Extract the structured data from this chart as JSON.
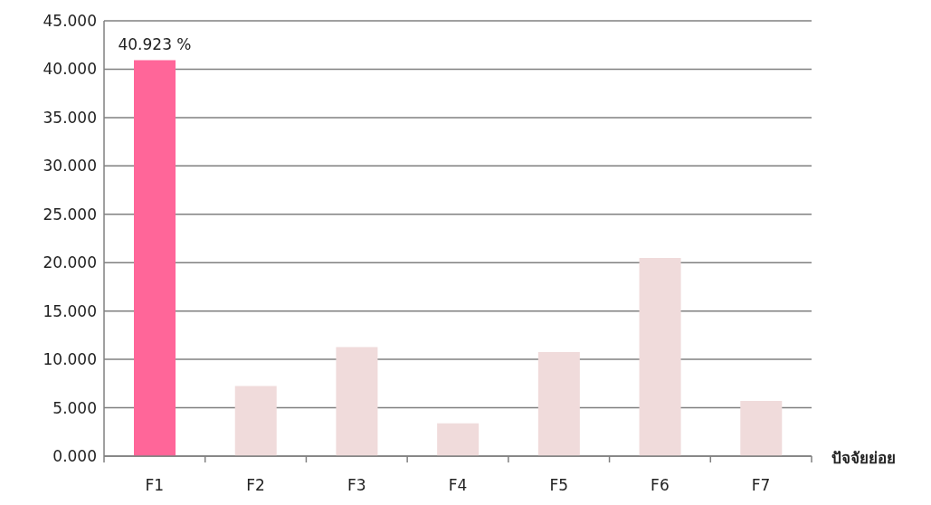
{
  "chart_data": {
    "type": "bar",
    "xlabel": "ปัจจัยย่อย",
    "categories": [
      "F1",
      "F2",
      "F3",
      "F4",
      "F5",
      "F6",
      "F7"
    ],
    "values": [
      40.923,
      7.25,
      11.27,
      3.39,
      10.77,
      20.49,
      5.7
    ],
    "colors": [
      "#ff6699",
      "#f0dbdb",
      "#f0dbdb",
      "#f0dbdb",
      "#f0dbdb",
      "#f0dbdb",
      "#f0dbdb"
    ],
    "value_labels": [
      "40.923 %",
      null,
      null,
      null,
      null,
      null,
      null
    ],
    "ylim": [
      0,
      45
    ],
    "yticks": [
      {
        "value": 0,
        "label": "0.000"
      },
      {
        "value": 5,
        "label": "5.000"
      },
      {
        "value": 10,
        "label": "10.000"
      },
      {
        "value": 15,
        "label": "15.000"
      },
      {
        "value": 20,
        "label": "20.000"
      },
      {
        "value": 25,
        "label": "25.000"
      },
      {
        "value": 30,
        "label": "30.000"
      },
      {
        "value": 35,
        "label": "35.000"
      },
      {
        "value": 40,
        "label": "40.000"
      },
      {
        "value": 45,
        "label": "45.000"
      }
    ],
    "grid": "y",
    "legend": false
  }
}
